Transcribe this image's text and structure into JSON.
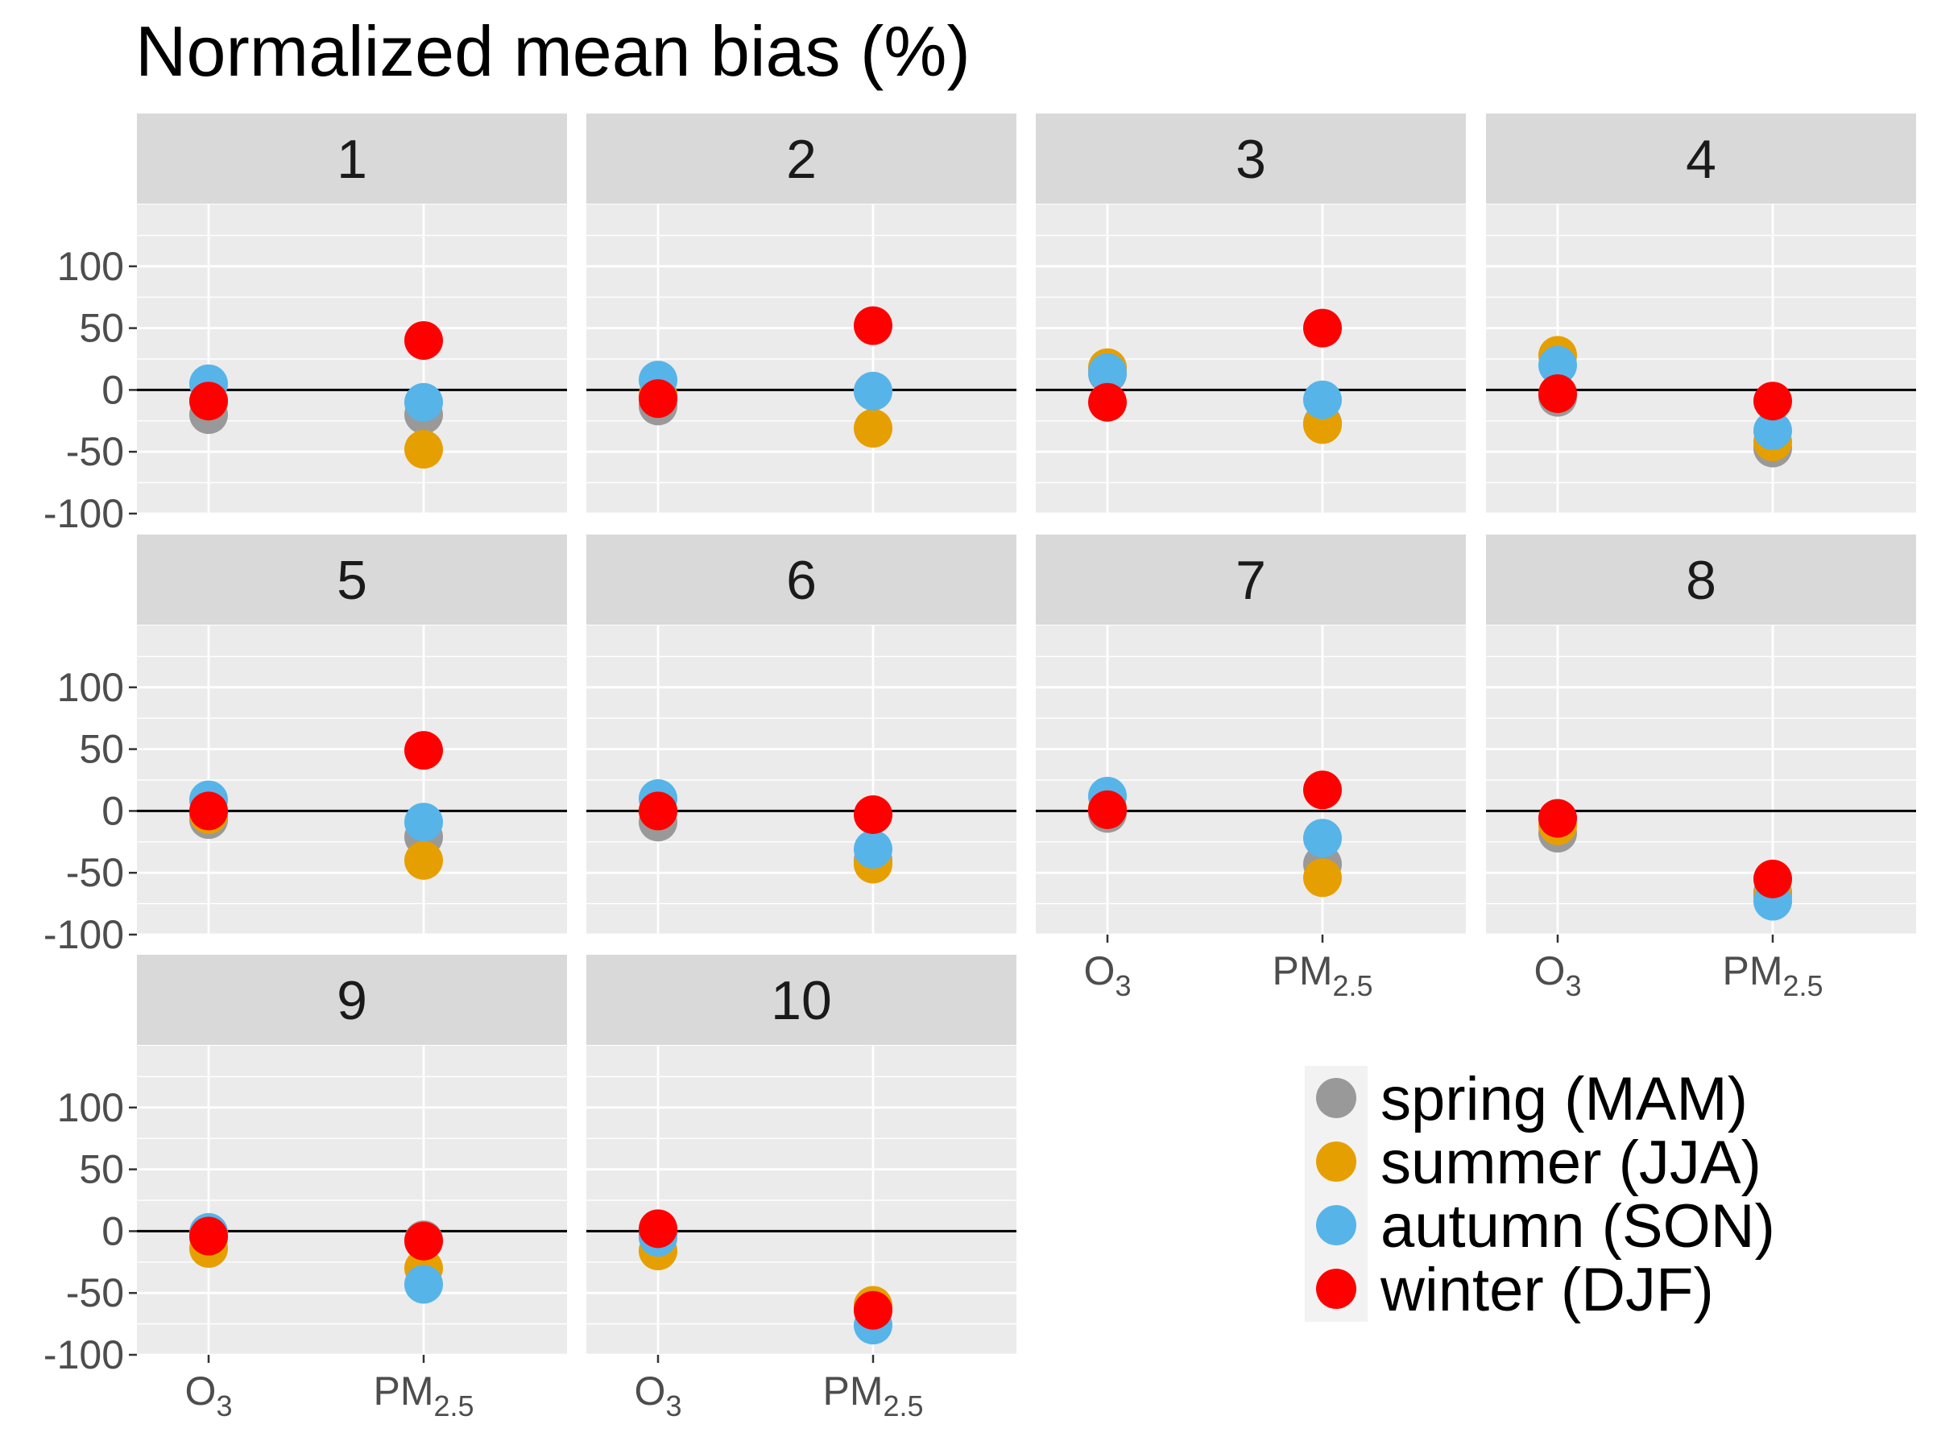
{
  "chart_data": {
    "type": "scatter",
    "title": "Normalized mean bias (%)",
    "xlabel": "",
    "ylabel": "",
    "categories": [
      "O3",
      "PM2.5"
    ],
    "x_tick_labels": [
      {
        "base": "O",
        "sub": "3"
      },
      {
        "base": "PM",
        "sub": "2.5"
      }
    ],
    "ylim": [
      -100,
      150
    ],
    "y_ticks": [
      -100,
      -50,
      0,
      50,
      100
    ],
    "y_tick_labels": [
      "-100",
      "-50",
      "0",
      "50",
      "100"
    ],
    "reference_line": 0,
    "grid": true,
    "legend_position": "bottom-right",
    "series": [
      {
        "name": "spring (MAM)",
        "color": "#999999"
      },
      {
        "name": "summer (JJA)",
        "color": "#E69F00"
      },
      {
        "name": "autumn (SON)",
        "color": "#56B4E9"
      },
      {
        "name": "winter (DJF)",
        "color": "#FF0000"
      }
    ],
    "panels": [
      {
        "label": "1",
        "values": {
          "O3": [
            -20,
            -9,
            5,
            -9
          ],
          "PM2.5": [
            -20,
            -48,
            -10,
            40
          ]
        }
      },
      {
        "label": "2",
        "values": {
          "O3": [
            -13,
            -4,
            8,
            -7
          ],
          "PM2.5": [
            -1,
            -31,
            -1,
            52
          ]
        }
      },
      {
        "label": "3",
        "values": {
          "O3": [
            13,
            18,
            14,
            -10
          ],
          "PM2.5": [
            -27,
            -28,
            -8,
            50
          ]
        }
      },
      {
        "label": "4",
        "values": {
          "O3": [
            -6,
            28,
            20,
            -3
          ],
          "PM2.5": [
            -47,
            -42,
            -33,
            -9
          ]
        }
      },
      {
        "label": "5",
        "values": {
          "O3": [
            -7,
            -3,
            9,
            0
          ],
          "PM2.5": [
            -21,
            -40,
            -9,
            49
          ]
        }
      },
      {
        "label": "6",
        "values": {
          "O3": [
            -9,
            0,
            10,
            0
          ],
          "PM2.5": [
            -40,
            -43,
            -31,
            -3
          ]
        }
      },
      {
        "label": "7",
        "values": {
          "O3": [
            -2,
            2,
            12,
            1
          ],
          "PM2.5": [
            -43,
            -54,
            -22,
            17
          ]
        }
      },
      {
        "label": "8",
        "values": {
          "O3": [
            -18,
            -12,
            -6,
            -6
          ],
          "PM2.5": [
            -66,
            -69,
            -73,
            -55
          ]
        }
      },
      {
        "label": "9",
        "values": {
          "O3": [
            -5,
            -14,
            -1,
            -4
          ],
          "PM2.5": [
            -7,
            -30,
            -43,
            -8
          ]
        }
      },
      {
        "label": "10",
        "values": {
          "O3": [
            -2,
            -16,
            -5,
            2
          ],
          "PM2.5": [
            -61,
            -60,
            -76,
            -64
          ]
        }
      }
    ]
  }
}
